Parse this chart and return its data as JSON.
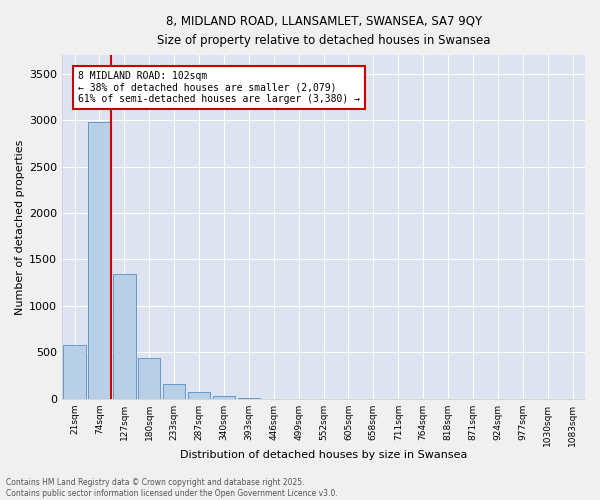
{
  "title_line1": "8, MIDLAND ROAD, LLANSAMLET, SWANSEA, SA7 9QY",
  "title_line2": "Size of property relative to detached houses in Swansea",
  "xlabel": "Distribution of detached houses by size in Swansea",
  "ylabel": "Number of detached properties",
  "bar_labels": [
    "21sqm",
    "74sqm",
    "127sqm",
    "180sqm",
    "233sqm",
    "287sqm",
    "340sqm",
    "393sqm",
    "446sqm",
    "499sqm",
    "552sqm",
    "605sqm",
    "658sqm",
    "711sqm",
    "764sqm",
    "818sqm",
    "871sqm",
    "924sqm",
    "977sqm",
    "1030sqm",
    "1083sqm"
  ],
  "bar_values": [
    580,
    2975,
    1340,
    435,
    165,
    75,
    35,
    5,
    3,
    0,
    0,
    0,
    0,
    0,
    0,
    0,
    0,
    0,
    0,
    0,
    0
  ],
  "bar_color": "#b8cfe8",
  "bar_edge_color": "#6699cc",
  "bg_color": "#dde3f0",
  "grid_color": "#ffffff",
  "vline_color": "#cc0000",
  "annotation_text": "8 MIDLAND ROAD: 102sqm\n← 38% of detached houses are smaller (2,079)\n61% of semi-detached houses are larger (3,380) →",
  "annotation_box_color": "#ffffff",
  "annotation_box_edge": "#cc0000",
  "ylim": [
    0,
    3700
  ],
  "yticks": [
    0,
    500,
    1000,
    1500,
    2000,
    2500,
    3000,
    3500
  ],
  "footer_text": "Contains HM Land Registry data © Crown copyright and database right 2025.\nContains public sector information licensed under the Open Government Licence v3.0.",
  "fig_facecolor": "#f0f0f0"
}
